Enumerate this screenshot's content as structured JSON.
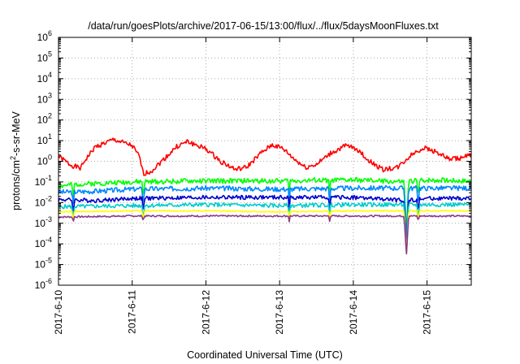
{
  "chart_data": {
    "type": "line",
    "title": "/data/run/goesPlots/archive/2017-06-15/13:00/flux/../flux/5daysMoonFluxes.txt",
    "xlabel": "Coordinated Universal Time (UTC)",
    "ylabel": {
      "prefix": "protons/cm",
      "sup": "2",
      "suffix": "-s-sr-MeV"
    },
    "yscale": "log",
    "ylim_exp": [
      -6,
      6
    ],
    "ytick_exponents": [
      -6,
      -5,
      -4,
      -3,
      -2,
      -1,
      0,
      1,
      2,
      3,
      4,
      5,
      6
    ],
    "xlim_days": [
      0,
      5.6
    ],
    "xticks": [
      {
        "day": 0,
        "label": "2017-6-10"
      },
      {
        "day": 1,
        "label": "2017-6-11"
      },
      {
        "day": 2,
        "label": "2017-6-12"
      },
      {
        "day": 3,
        "label": "2017-6-13"
      },
      {
        "day": 4,
        "label": "2017-6-14"
      },
      {
        "day": 5,
        "label": "2017-6-15"
      }
    ],
    "grid": true,
    "series": [
      {
        "color": "#ff0000",
        "anchors": [
          [
            0,
            0.25
          ],
          [
            0.15,
            -0.15
          ],
          [
            0.3,
            -0.35
          ],
          [
            0.35,
            0
          ],
          [
            0.5,
            0.7
          ],
          [
            0.75,
            1.05
          ],
          [
            1.0,
            0.75
          ],
          [
            1.1,
            0.2
          ],
          [
            1.15,
            -0.6
          ],
          [
            1.25,
            -0.5
          ],
          [
            1.4,
            0.0
          ],
          [
            1.6,
            0.7
          ],
          [
            1.75,
            0.95
          ],
          [
            2.0,
            0.6
          ],
          [
            2.2,
            0.0
          ],
          [
            2.4,
            -0.4
          ],
          [
            2.55,
            -0.3
          ],
          [
            2.75,
            0.4
          ],
          [
            2.9,
            0.8
          ],
          [
            3.05,
            0.6
          ],
          [
            3.2,
            0.1
          ],
          [
            3.35,
            -0.3
          ],
          [
            3.5,
            -0.15
          ],
          [
            3.7,
            0.4
          ],
          [
            3.9,
            0.75
          ],
          [
            4.05,
            0.6
          ],
          [
            4.2,
            0.05
          ],
          [
            4.4,
            -0.4
          ],
          [
            4.6,
            -0.3
          ],
          [
            4.8,
            0.35
          ],
          [
            4.95,
            0.65
          ],
          [
            5.1,
            0.5
          ],
          [
            5.3,
            0.1
          ],
          [
            5.45,
            0.15
          ],
          [
            5.6,
            0.3
          ]
        ],
        "noise": 0.12,
        "seed": 1
      },
      {
        "color": "#00ff00",
        "anchors": [
          [
            0,
            -1.2
          ],
          [
            0.3,
            -1.1
          ],
          [
            1.0,
            -1.0
          ],
          [
            2.0,
            -0.95
          ],
          [
            3.0,
            -0.95
          ],
          [
            4.0,
            -0.9
          ],
          [
            4.7,
            -1.0
          ],
          [
            5.0,
            -0.9
          ],
          [
            5.6,
            -0.95
          ]
        ],
        "noise": 0.12,
        "seed": 2
      },
      {
        "color": "#0088ff",
        "anchors": [
          [
            0,
            -1.5
          ],
          [
            0.5,
            -1.45
          ],
          [
            1.0,
            -1.35
          ],
          [
            2.0,
            -1.3
          ],
          [
            3.0,
            -1.35
          ],
          [
            4.0,
            -1.3
          ],
          [
            5.0,
            -1.3
          ],
          [
            5.6,
            -1.3
          ]
        ],
        "noise": 0.12,
        "seed": 3
      },
      {
        "color": "#0000cc",
        "anchors": [
          [
            0,
            -1.85
          ],
          [
            0.5,
            -1.9
          ],
          [
            1.0,
            -1.8
          ],
          [
            2.0,
            -1.75
          ],
          [
            3.0,
            -1.75
          ],
          [
            4.0,
            -1.75
          ],
          [
            4.7,
            -1.9
          ],
          [
            5.0,
            -1.8
          ],
          [
            5.6,
            -1.8
          ]
        ],
        "noise": 0.1,
        "seed": 4
      },
      {
        "color": "#00cccc",
        "anchors": [
          [
            0,
            -2.2
          ],
          [
            1.0,
            -2.15
          ],
          [
            2.0,
            -2.1
          ],
          [
            3.0,
            -2.15
          ],
          [
            4.0,
            -2.1
          ],
          [
            5.0,
            -2.1
          ],
          [
            5.6,
            -2.1
          ]
        ],
        "noise": 0.1,
        "seed": 5
      },
      {
        "color": "#ffff00",
        "anchors": [
          [
            0,
            -2.45
          ],
          [
            1.0,
            -2.4
          ],
          [
            2.0,
            -2.4
          ],
          [
            3.0,
            -2.45
          ],
          [
            4.0,
            -2.4
          ],
          [
            5.0,
            -2.4
          ],
          [
            5.6,
            -2.4
          ]
        ],
        "noise": 0.03,
        "seed": 6
      },
      {
        "color": "#8b3a8b",
        "anchors": [
          [
            0,
            -2.7
          ],
          [
            1.0,
            -2.65
          ],
          [
            2.0,
            -2.65
          ],
          [
            3.0,
            -2.65
          ],
          [
            4.0,
            -2.65
          ],
          [
            5.0,
            -2.65
          ],
          [
            5.6,
            -2.65
          ]
        ],
        "noise": 0.04,
        "seed": 7
      }
    ],
    "dips": [
      {
        "day": 4.72,
        "width": 0.03,
        "to": -4.6
      },
      {
        "day": 0.2,
        "width": 0.015,
        "to": -2.95
      },
      {
        "day": 1.15,
        "width": 0.015,
        "to": -2.9
      },
      {
        "day": 3.13,
        "width": 0.012,
        "to": -2.95
      },
      {
        "day": 3.68,
        "width": 0.012,
        "to": -2.95
      },
      {
        "day": 4.88,
        "width": 0.015,
        "to": -2.9
      }
    ]
  }
}
